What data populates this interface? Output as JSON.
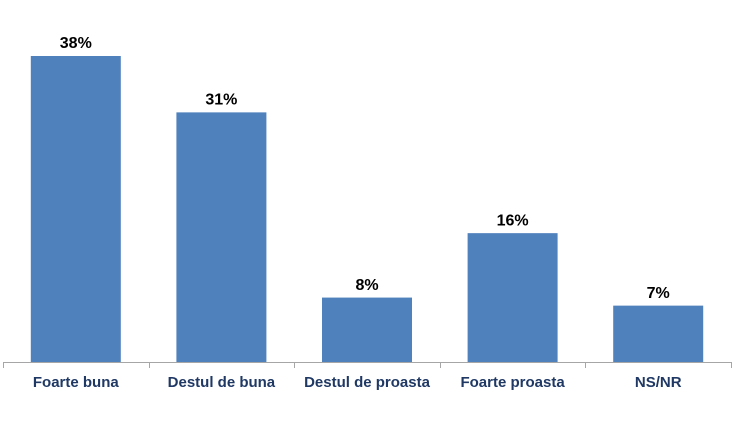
{
  "chart_data": {
    "type": "bar",
    "categories": [
      "Foarte buna",
      "Destul de buna",
      "Destul de proasta",
      "Foarte proasta",
      "NS/NR"
    ],
    "values": [
      38,
      31,
      8,
      16,
      7
    ],
    "value_labels": [
      "38%",
      "31%",
      "8%",
      "16%",
      "7%"
    ],
    "color": "#4f81bd"
  }
}
